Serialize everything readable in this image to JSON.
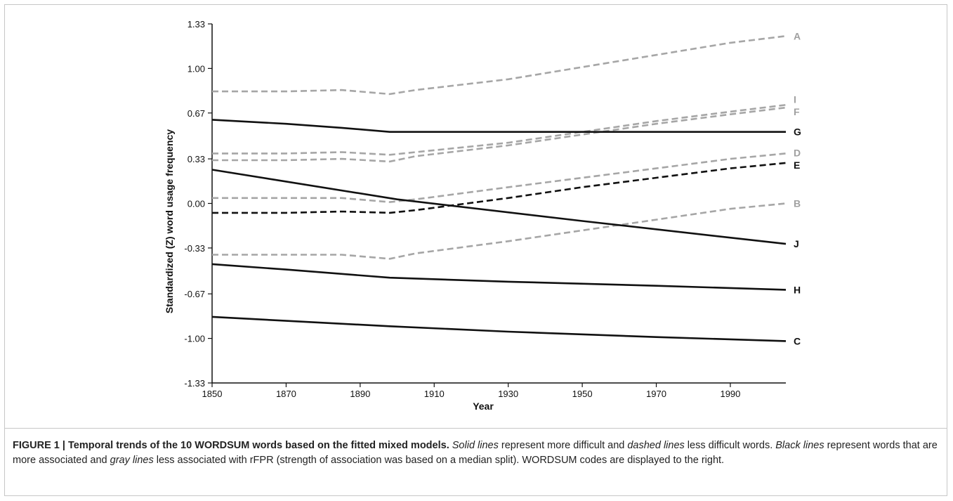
{
  "chart_data": {
    "type": "line",
    "xlabel": "Year",
    "ylabel": "Standardized (Z) word usage frequency",
    "xlim": [
      1850,
      2005
    ],
    "ylim": [
      -1.33,
      1.33
    ],
    "xticks": [
      1850,
      1870,
      1890,
      1910,
      1930,
      1950,
      1970,
      1990
    ],
    "yticks": [
      1.33,
      1.0,
      0.67,
      0.33,
      0.0,
      -0.33,
      -0.67,
      -1.0,
      -1.33
    ],
    "ytick_labels": [
      "1.33",
      "1.00",
      "0.67",
      "0.33",
      "0.00",
      "-0.33",
      "-0.67",
      "-1.00",
      "-1.33"
    ],
    "series": [
      {
        "name": "A",
        "color": "#a6a6a6",
        "dash": true,
        "points": [
          [
            1850,
            0.83
          ],
          [
            1870,
            0.83
          ],
          [
            1885,
            0.84
          ],
          [
            1898,
            0.81
          ],
          [
            1905,
            0.84
          ],
          [
            1930,
            0.92
          ],
          [
            1950,
            1.01
          ],
          [
            1970,
            1.1
          ],
          [
            1990,
            1.19
          ],
          [
            2005,
            1.24
          ]
        ]
      },
      {
        "name": "I",
        "color": "#a6a6a6",
        "dash": true,
        "points": [
          [
            1850,
            0.37
          ],
          [
            1870,
            0.37
          ],
          [
            1885,
            0.38
          ],
          [
            1898,
            0.36
          ],
          [
            1905,
            0.38
          ],
          [
            1930,
            0.45
          ],
          [
            1950,
            0.53
          ],
          [
            1970,
            0.61
          ],
          [
            1990,
            0.68
          ],
          [
            2005,
            0.73
          ]
        ]
      },
      {
        "name": "F",
        "color": "#a6a6a6",
        "dash": true,
        "points": [
          [
            1850,
            0.32
          ],
          [
            1870,
            0.32
          ],
          [
            1885,
            0.33
          ],
          [
            1898,
            0.31
          ],
          [
            1905,
            0.35
          ],
          [
            1930,
            0.43
          ],
          [
            1950,
            0.51
          ],
          [
            1970,
            0.59
          ],
          [
            1990,
            0.66
          ],
          [
            2005,
            0.71
          ]
        ]
      },
      {
        "name": "G",
        "color": "#111111",
        "dash": false,
        "points": [
          [
            1850,
            0.62
          ],
          [
            1870,
            0.59
          ],
          [
            1885,
            0.56
          ],
          [
            1898,
            0.53
          ],
          [
            1950,
            0.53
          ],
          [
            2005,
            0.53
          ]
        ]
      },
      {
        "name": "D",
        "color": "#a6a6a6",
        "dash": true,
        "points": [
          [
            1850,
            0.04
          ],
          [
            1870,
            0.04
          ],
          [
            1885,
            0.04
          ],
          [
            1898,
            0.01
          ],
          [
            1905,
            0.03
          ],
          [
            1930,
            0.12
          ],
          [
            1950,
            0.19
          ],
          [
            1970,
            0.26
          ],
          [
            1990,
            0.33
          ],
          [
            2005,
            0.37
          ]
        ]
      },
      {
        "name": "E",
        "color": "#111111",
        "dash": true,
        "points": [
          [
            1850,
            -0.07
          ],
          [
            1870,
            -0.07
          ],
          [
            1885,
            -0.06
          ],
          [
            1898,
            -0.07
          ],
          [
            1905,
            -0.05
          ],
          [
            1930,
            0.04
          ],
          [
            1950,
            0.12
          ],
          [
            1970,
            0.19
          ],
          [
            1990,
            0.26
          ],
          [
            2005,
            0.3
          ]
        ]
      },
      {
        "name": "B",
        "color": "#a6a6a6",
        "dash": true,
        "points": [
          [
            1850,
            -0.38
          ],
          [
            1870,
            -0.38
          ],
          [
            1885,
            -0.38
          ],
          [
            1898,
            -0.41
          ],
          [
            1905,
            -0.37
          ],
          [
            1930,
            -0.28
          ],
          [
            1950,
            -0.2
          ],
          [
            1970,
            -0.12
          ],
          [
            1990,
            -0.04
          ],
          [
            2005,
            0.0
          ]
        ]
      },
      {
        "name": "J",
        "color": "#111111",
        "dash": false,
        "points": [
          [
            1850,
            0.25
          ],
          [
            1900,
            0.03
          ],
          [
            1950,
            -0.13
          ],
          [
            2005,
            -0.3
          ]
        ]
      },
      {
        "name": "H",
        "color": "#111111",
        "dash": false,
        "points": [
          [
            1850,
            -0.45
          ],
          [
            1870,
            -0.49
          ],
          [
            1898,
            -0.55
          ],
          [
            1930,
            -0.58
          ],
          [
            1970,
            -0.61
          ],
          [
            2005,
            -0.64
          ]
        ]
      },
      {
        "name": "C",
        "color": "#111111",
        "dash": false,
        "points": [
          [
            1850,
            -0.84
          ],
          [
            1870,
            -0.87
          ],
          [
            1898,
            -0.91
          ],
          [
            1930,
            -0.95
          ],
          [
            1970,
            -0.99
          ],
          [
            2005,
            -1.02
          ]
        ]
      }
    ]
  },
  "caption": {
    "lead": "FIGURE 1 | Temporal trends of the 10 WORDSUM words based on the fitted mixed models.",
    "p1": "Solid lines",
    "p2": " represent more difficult and ",
    "p3": "dashed lines",
    "p4": " less difficult words. ",
    "p5": "Black lines",
    "p6": " represent words that are more associated and ",
    "p7": "gray lines",
    "p8": " less associated with rFPR (strength of association was based on a median split). WORDSUM codes are displayed to the right."
  }
}
